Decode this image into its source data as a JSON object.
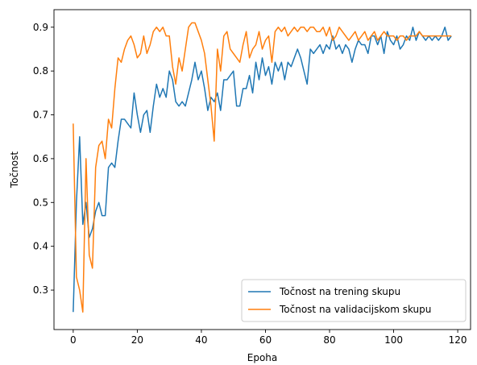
{
  "chart_data": {
    "type": "line",
    "xlabel": "Epoha",
    "ylabel": "Točnost",
    "xlim": [
      -6,
      124
    ],
    "ylim": [
      0.21,
      0.94
    ],
    "xticks": [
      0,
      20,
      40,
      60,
      80,
      100,
      120
    ],
    "yticks": [
      0.3,
      0.4,
      0.5,
      0.6,
      0.7,
      0.8,
      0.9
    ],
    "grid": false,
    "legend_position": "lower-right",
    "series": [
      {
        "name": "Točnost na trening skupu",
        "color": "#1f77b4",
        "x": [
          0,
          1,
          2,
          3,
          4,
          5,
          6,
          7,
          8,
          9,
          10,
          11,
          12,
          13,
          14,
          15,
          16,
          17,
          18,
          19,
          20,
          21,
          22,
          23,
          24,
          25,
          26,
          27,
          28,
          29,
          30,
          31,
          32,
          33,
          34,
          35,
          36,
          37,
          38,
          39,
          40,
          41,
          42,
          43,
          44,
          45,
          46,
          47,
          48,
          49,
          50,
          51,
          52,
          53,
          54,
          55,
          56,
          57,
          58,
          59,
          60,
          61,
          62,
          63,
          64,
          65,
          66,
          67,
          68,
          69,
          70,
          71,
          72,
          73,
          74,
          75,
          76,
          77,
          78,
          79,
          80,
          81,
          82,
          83,
          84,
          85,
          86,
          87,
          88,
          89,
          90,
          91,
          92,
          93,
          94,
          95,
          96,
          97,
          98,
          99,
          100,
          101,
          102,
          103,
          104,
          105,
          106,
          107,
          108,
          109,
          110,
          111,
          112,
          113,
          114,
          115,
          116,
          117,
          118
        ],
        "y": [
          0.25,
          0.5,
          0.65,
          0.45,
          0.5,
          0.42,
          0.44,
          0.48,
          0.5,
          0.47,
          0.47,
          0.58,
          0.59,
          0.58,
          0.64,
          0.69,
          0.69,
          0.68,
          0.67,
          0.75,
          0.7,
          0.66,
          0.7,
          0.71,
          0.66,
          0.72,
          0.77,
          0.74,
          0.76,
          0.74,
          0.8,
          0.78,
          0.73,
          0.72,
          0.73,
          0.72,
          0.75,
          0.78,
          0.82,
          0.78,
          0.8,
          0.76,
          0.71,
          0.74,
          0.73,
          0.75,
          0.71,
          0.78,
          0.78,
          0.79,
          0.8,
          0.72,
          0.72,
          0.76,
          0.76,
          0.79,
          0.75,
          0.82,
          0.78,
          0.83,
          0.79,
          0.81,
          0.77,
          0.82,
          0.8,
          0.82,
          0.78,
          0.82,
          0.81,
          0.83,
          0.85,
          0.83,
          0.8,
          0.77,
          0.85,
          0.84,
          0.85,
          0.86,
          0.84,
          0.86,
          0.85,
          0.88,
          0.85,
          0.86,
          0.84,
          0.86,
          0.85,
          0.82,
          0.85,
          0.87,
          0.86,
          0.86,
          0.84,
          0.88,
          0.88,
          0.86,
          0.88,
          0.84,
          0.89,
          0.87,
          0.86,
          0.88,
          0.85,
          0.86,
          0.88,
          0.87,
          0.9,
          0.87,
          0.89,
          0.88,
          0.87,
          0.88,
          0.87,
          0.88,
          0.87,
          0.88,
          0.9,
          0.87,
          0.88
        ]
      },
      {
        "name": "Točnost na validacijskom skupu",
        "color": "#ff7f0e",
        "x": [
          0,
          1,
          2,
          3,
          4,
          5,
          6,
          7,
          8,
          9,
          10,
          11,
          12,
          13,
          14,
          15,
          16,
          17,
          18,
          19,
          20,
          21,
          22,
          23,
          24,
          25,
          26,
          27,
          28,
          29,
          30,
          31,
          32,
          33,
          34,
          35,
          36,
          37,
          38,
          39,
          40,
          41,
          42,
          43,
          44,
          45,
          46,
          47,
          48,
          49,
          50,
          51,
          52,
          53,
          54,
          55,
          56,
          57,
          58,
          59,
          60,
          61,
          62,
          63,
          64,
          65,
          66,
          67,
          68,
          69,
          70,
          71,
          72,
          73,
          74,
          75,
          76,
          77,
          78,
          79,
          80,
          81,
          82,
          83,
          84,
          85,
          86,
          87,
          88,
          89,
          90,
          91,
          92,
          93,
          94,
          95,
          96,
          97,
          98,
          99,
          100,
          101,
          102,
          103,
          104,
          105,
          106,
          107,
          108,
          109,
          110,
          111,
          112,
          113,
          114,
          115,
          116,
          117,
          118
        ],
        "y": [
          0.68,
          0.33,
          0.3,
          0.25,
          0.6,
          0.38,
          0.35,
          0.58,
          0.63,
          0.64,
          0.6,
          0.69,
          0.67,
          0.76,
          0.83,
          0.82,
          0.85,
          0.87,
          0.88,
          0.86,
          0.83,
          0.84,
          0.88,
          0.84,
          0.86,
          0.89,
          0.9,
          0.89,
          0.9,
          0.88,
          0.88,
          0.81,
          0.77,
          0.83,
          0.8,
          0.85,
          0.9,
          0.91,
          0.91,
          0.89,
          0.87,
          0.84,
          0.78,
          0.72,
          0.64,
          0.85,
          0.8,
          0.88,
          0.89,
          0.85,
          0.84,
          0.83,
          0.82,
          0.86,
          0.89,
          0.83,
          0.85,
          0.86,
          0.89,
          0.85,
          0.87,
          0.88,
          0.82,
          0.89,
          0.9,
          0.89,
          0.9,
          0.88,
          0.89,
          0.9,
          0.89,
          0.9,
          0.9,
          0.89,
          0.9,
          0.9,
          0.89,
          0.89,
          0.9,
          0.88,
          0.9,
          0.87,
          0.88,
          0.9,
          0.89,
          0.88,
          0.87,
          0.88,
          0.89,
          0.87,
          0.88,
          0.89,
          0.87,
          0.88,
          0.89,
          0.87,
          0.88,
          0.89,
          0.88,
          0.88,
          0.88,
          0.87,
          0.88,
          0.88,
          0.87,
          0.88,
          0.88,
          0.88,
          0.89,
          0.88,
          0.88,
          0.88,
          0.88,
          0.88,
          0.88,
          0.88,
          0.88,
          0.88,
          0.88
        ]
      }
    ]
  }
}
